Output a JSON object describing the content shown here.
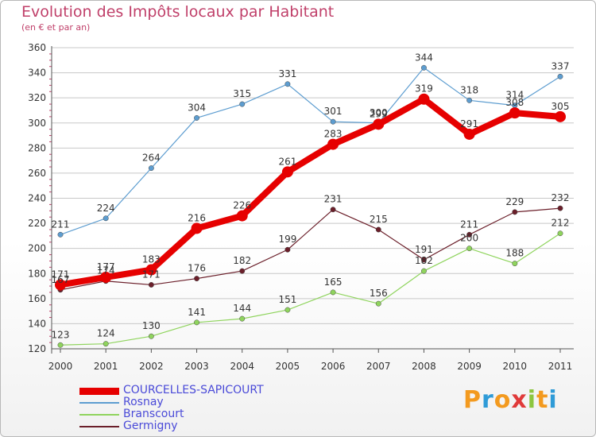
{
  "title": "Evolution des Impôts locaux par Habitant",
  "subtitle": "(en € et par an)",
  "logo": {
    "letters": [
      "P",
      "r",
      "o",
      "x",
      "i",
      "t",
      "i"
    ],
    "letter_colors": [
      "#f39a1f",
      "#2f9bd7",
      "#f39a1f",
      "#e03a3a",
      "#8cc63f",
      "#f39a1f",
      "#2f9bd7"
    ]
  },
  "colors": {
    "COURCELLES-SAPICOURT": "#e60000",
    "Rosnay": "#5d9dd0",
    "Branscourt": "#8fd45d",
    "Germigny": "#6b1f2a",
    "grid": "#c8c8c8",
    "axis": "#555555",
    "text": "#333333",
    "legend_text": "#4a4ad8",
    "minor_tick": "#c0406a"
  },
  "chart_data": {
    "type": "line",
    "title": "Evolution des Impôts locaux par Habitant",
    "subtitle": "(en € et par an)",
    "xlabel": "",
    "ylabel": "",
    "ylim": [
      120,
      360
    ],
    "yticks": [
      120,
      140,
      160,
      180,
      200,
      220,
      240,
      260,
      280,
      300,
      320,
      340,
      360
    ],
    "x": [
      "2000",
      "2001",
      "2002",
      "2003",
      "2004",
      "2005",
      "2006",
      "2007",
      "2008",
      "2009",
      "2010",
      "2011"
    ],
    "grid": "horizontal",
    "legend_position": "bottom-left",
    "series": [
      {
        "name": "COURCELLES-SAPICOURT",
        "values": [
          171,
          177,
          183,
          216,
          226,
          261,
          283,
          299,
          319,
          291,
          308,
          305
        ]
      },
      {
        "name": "Rosnay",
        "values": [
          211,
          224,
          264,
          304,
          315,
          331,
          301,
          300,
          344,
          318,
          314,
          337
        ]
      },
      {
        "name": "Branscourt",
        "values": [
          123,
          124,
          130,
          141,
          144,
          151,
          165,
          156,
          182,
          200,
          188,
          212
        ]
      },
      {
        "name": "Germigny",
        "values": [
          167,
          174,
          171,
          176,
          182,
          199,
          231,
          215,
          191,
          211,
          229,
          232
        ]
      }
    ]
  }
}
